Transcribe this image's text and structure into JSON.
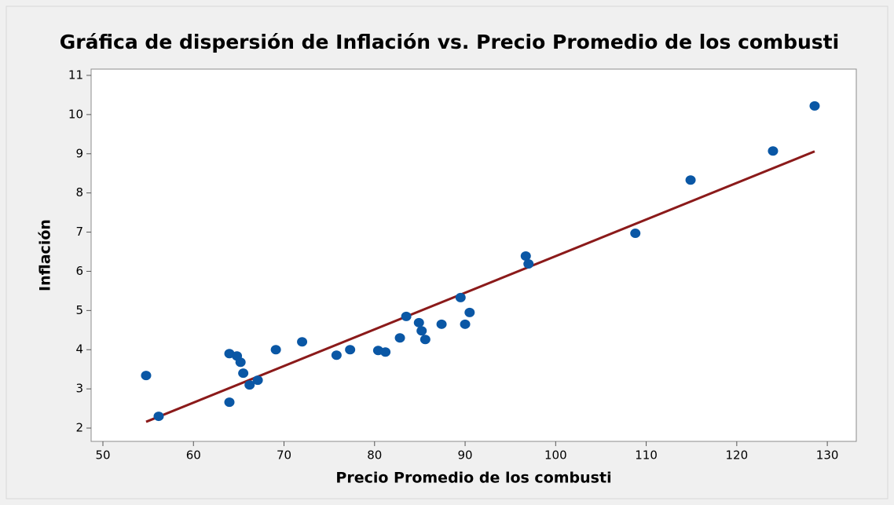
{
  "chart_data": {
    "type": "scatter",
    "title": "Gráfica de dispersión de Inflación vs. Precio Promedio de los combusti",
    "x_label": "Precio Promedio de los combusti",
    "y_label": "Inflación",
    "x": [
      54.77,
      56.16,
      63.97,
      63.97,
      64.8,
      65.2,
      65.5,
      66.2,
      67.1,
      69.1,
      72.0,
      75.8,
      77.3,
      80.4,
      81.2,
      82.8,
      83.5,
      84.9,
      85.2,
      85.6,
      87.4,
      89.5,
      90.0,
      90.5,
      96.7,
      97.0,
      108.8,
      114.9,
      124.0,
      128.6
    ],
    "values": [
      3.34,
      2.3,
      3.9,
      2.66,
      3.84,
      3.68,
      3.4,
      3.1,
      3.22,
      4.0,
      4.2,
      3.86,
      4.0,
      3.98,
      3.94,
      4.3,
      4.85,
      4.69,
      4.48,
      4.26,
      4.65,
      5.33,
      4.65,
      4.95,
      6.39,
      6.19,
      6.97,
      8.33,
      9.07,
      10.22
    ],
    "color": "#0a57a5",
    "fit_line": {
      "x": [
        54.77,
        128.6
      ],
      "values": [
        2.16,
        9.06
      ],
      "color": "#8b1a1a"
    },
    "xlim": [
      48.7,
      133.2
    ],
    "ylim": [
      1.66,
      11.16
    ],
    "xticks": [
      50,
      60,
      70,
      80,
      90,
      100,
      110,
      120,
      130
    ],
    "yticks": [
      2,
      3,
      4,
      5,
      6,
      7,
      8,
      9,
      10,
      11
    ]
  }
}
